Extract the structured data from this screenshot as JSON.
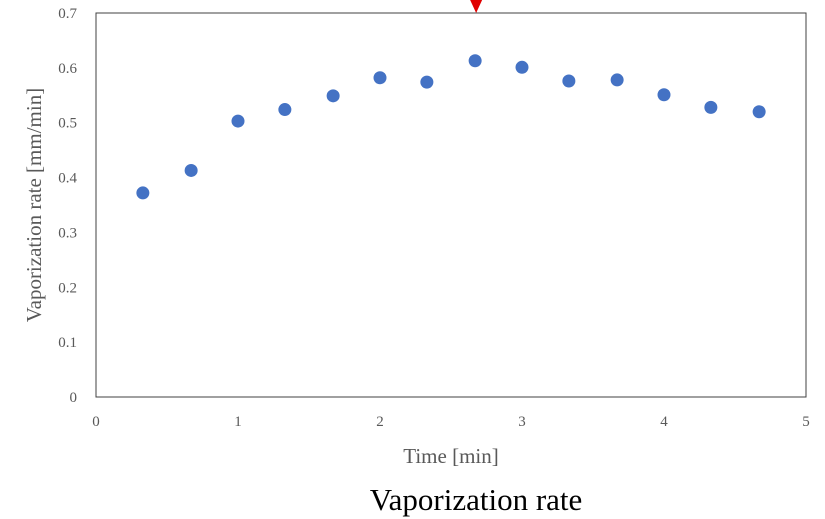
{
  "chart_data": {
    "type": "scatter",
    "title": "",
    "xlabel": "Time [min]",
    "ylabel": "Vaporization rate [mm/min]",
    "caption": "Vaporization rate",
    "xlim": [
      0,
      5
    ],
    "ylim": [
      0,
      0.7
    ],
    "xticks": [
      0,
      1,
      2,
      3,
      4,
      5
    ],
    "yticks": [
      0,
      0.1,
      0.2,
      0.3,
      0.4,
      0.5,
      0.6,
      0.7
    ],
    "grid": false,
    "legend": "none",
    "marker_color": "#4472C4",
    "indicator_color": "#E00000",
    "indicator_x": 2.67,
    "series": [
      {
        "x": [
          0.33,
          0.67,
          1.0,
          1.33,
          1.67,
          2.0,
          2.33,
          2.67,
          3.0,
          3.33,
          3.67,
          4.0,
          4.33,
          4.67
        ],
        "y": [
          0.372,
          0.413,
          0.503,
          0.524,
          0.549,
          0.582,
          0.574,
          0.613,
          0.601,
          0.576,
          0.578,
          0.551,
          0.528,
          0.52
        ]
      }
    ]
  }
}
